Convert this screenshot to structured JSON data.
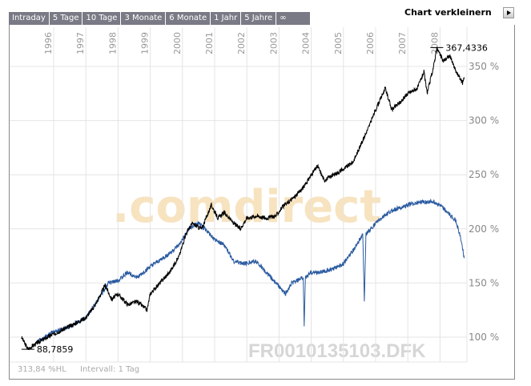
{
  "tabs": [
    "Intraday",
    "5 Tage",
    "10 Tage",
    "3 Monate",
    "6 Monate",
    "1 Jahr",
    "5 Jahre",
    "∞"
  ],
  "shrink_label": "Chart verkleinern",
  "watermark": ".comdirect",
  "symbol": "FR0010135103.DFK",
  "footer": {
    "range": "313,84 %HL",
    "interval": "Intervall: 1 Tag"
  },
  "colors": {
    "series_black": "#000000",
    "series_blue": "#2a5aa0",
    "grid": "#e4e4e4",
    "watermark_orange": "#f7e3bf"
  },
  "chart_data": {
    "type": "line",
    "x_ticks": [
      "1996",
      "1997",
      "1998",
      "1999",
      "2000",
      "2001",
      "2002",
      "2003",
      "2004",
      "2005",
      "2006",
      "2007",
      "2008"
    ],
    "y_ticks": [
      "100 %",
      "150 %",
      "200 %",
      "250 %",
      "300 %",
      "350 %"
    ],
    "ylim": [
      77,
      373
    ],
    "xlim": [
      1994.95,
      2009.6
    ],
    "grid": true,
    "annotations": [
      {
        "label": "367,4336",
        "x": 2007.9,
        "y": 367.43
      },
      {
        "label": "88,7859",
        "x": 1995.2,
        "y": 88.79
      }
    ],
    "series": [
      {
        "color": "#000000",
        "points": [
          [
            1995.0,
            100
          ],
          [
            1995.2,
            89
          ],
          [
            1995.5,
            95
          ],
          [
            1996.0,
            103
          ],
          [
            1996.5,
            110
          ],
          [
            1997.0,
            118
          ],
          [
            1997.3,
            130
          ],
          [
            1997.6,
            148
          ],
          [
            1997.8,
            135
          ],
          [
            1998.0,
            140
          ],
          [
            1998.3,
            130
          ],
          [
            1998.6,
            133
          ],
          [
            1998.9,
            125
          ],
          [
            1999.0,
            140
          ],
          [
            1999.3,
            150
          ],
          [
            1999.6,
            160
          ],
          [
            1999.9,
            175
          ],
          [
            2000.1,
            195
          ],
          [
            2000.3,
            205
          ],
          [
            2000.6,
            200
          ],
          [
            2000.8,
            215
          ],
          [
            2000.9,
            222
          ],
          [
            2001.1,
            210
          ],
          [
            2001.3,
            215
          ],
          [
            2001.6,
            205
          ],
          [
            2001.8,
            200
          ],
          [
            2002.0,
            210
          ],
          [
            2002.3,
            212
          ],
          [
            2002.6,
            210
          ],
          [
            2002.9,
            212
          ],
          [
            2003.1,
            220
          ],
          [
            2003.5,
            230
          ],
          [
            2003.8,
            240
          ],
          [
            2004.0,
            250
          ],
          [
            2004.2,
            258
          ],
          [
            2004.4,
            245
          ],
          [
            2004.7,
            250
          ],
          [
            2005.0,
            255
          ],
          [
            2005.3,
            262
          ],
          [
            2005.5,
            275
          ],
          [
            2005.8,
            295
          ],
          [
            2006.0,
            310
          ],
          [
            2006.3,
            330
          ],
          [
            2006.5,
            310
          ],
          [
            2006.8,
            318
          ],
          [
            2007.0,
            325
          ],
          [
            2007.3,
            330
          ],
          [
            2007.5,
            345
          ],
          [
            2007.6,
            325
          ],
          [
            2007.8,
            350
          ],
          [
            2007.9,
            367
          ],
          [
            2008.1,
            355
          ],
          [
            2008.3,
            360
          ],
          [
            2008.5,
            345
          ],
          [
            2008.7,
            335
          ],
          [
            2008.75,
            340
          ]
        ]
      },
      {
        "color": "#2a5aa0",
        "points": [
          [
            1995.5,
            96
          ],
          [
            1996.0,
            105
          ],
          [
            1996.5,
            110
          ],
          [
            1997.0,
            118
          ],
          [
            1997.5,
            140
          ],
          [
            1997.7,
            150
          ],
          [
            1998.0,
            152
          ],
          [
            1998.3,
            160
          ],
          [
            1998.6,
            155
          ],
          [
            1998.8,
            160
          ],
          [
            1999.0,
            165
          ],
          [
            1999.5,
            175
          ],
          [
            1999.9,
            185
          ],
          [
            2000.2,
            200
          ],
          [
            2000.5,
            205
          ],
          [
            2000.7,
            200
          ],
          [
            2001.0,
            190
          ],
          [
            2001.3,
            185
          ],
          [
            2001.6,
            170
          ],
          [
            2001.9,
            168
          ],
          [
            2002.3,
            170
          ],
          [
            2002.6,
            160
          ],
          [
            2002.9,
            150
          ],
          [
            2003.2,
            140
          ],
          [
            2003.4,
            150
          ],
          [
            2003.75,
            155
          ],
          [
            2003.78,
            110
          ],
          [
            2003.82,
            155
          ],
          [
            2004.0,
            160
          ],
          [
            2004.3,
            160
          ],
          [
            2004.7,
            163
          ],
          [
            2005.0,
            168
          ],
          [
            2005.3,
            180
          ],
          [
            2005.6,
            195
          ],
          [
            2005.65,
            133
          ],
          [
            2005.7,
            195
          ],
          [
            2006.0,
            205
          ],
          [
            2006.3,
            213
          ],
          [
            2006.6,
            218
          ],
          [
            2007.0,
            222
          ],
          [
            2007.4,
            225
          ],
          [
            2007.8,
            225
          ],
          [
            2008.0,
            222
          ],
          [
            2008.3,
            213
          ],
          [
            2008.5,
            207
          ],
          [
            2008.65,
            190
          ],
          [
            2008.75,
            173
          ]
        ]
      }
    ]
  }
}
